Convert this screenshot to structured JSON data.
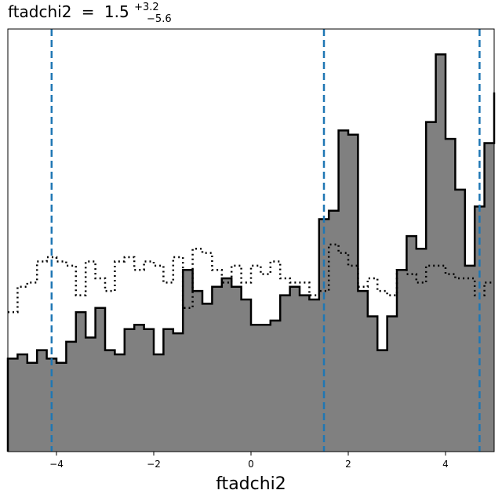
{
  "chart_data": {
    "type": "histogram",
    "title": {
      "param": "ftadchi2",
      "equals": "=",
      "median": "1.5",
      "upper_err": "+3.2",
      "lower_err": "−5.6"
    },
    "xlabel": "ftadchi2",
    "ylabel": "",
    "xlim": [
      -5,
      5
    ],
    "ylim": [
      0,
      1.0
    ],
    "x_ticks": [
      -4,
      -2,
      0,
      2,
      4
    ],
    "x_tick_labels": [
      "−4",
      "−2",
      "0",
      "2",
      "4"
    ],
    "y_ticks": [],
    "grid": false,
    "legend": "none",
    "bin_edges": [
      -5.0,
      -4.8,
      -4.6,
      -4.4,
      -4.2,
      -4.0,
      -3.8,
      -3.6,
      -3.4,
      -3.2,
      -3.0,
      -2.8,
      -2.6,
      -2.4,
      -2.2,
      -2.0,
      -1.8,
      -1.6,
      -1.4,
      -1.2,
      -1.0,
      -0.8,
      -0.6,
      -0.4,
      -0.2,
      0.0,
      0.2,
      0.4,
      0.6,
      0.8,
      1.0,
      1.2,
      1.4,
      1.6,
      1.8,
      2.0,
      2.2,
      2.4,
      2.6,
      2.8,
      3.0,
      3.2,
      3.4,
      3.6,
      3.8,
      4.0,
      4.2,
      4.4,
      4.6,
      4.8,
      5.0
    ],
    "series": [
      {
        "style": "filled-step",
        "fill_color": "#808080",
        "edge_color": "#000000",
        "values": [
          0.22,
          0.23,
          0.21,
          0.24,
          0.22,
          0.21,
          0.26,
          0.33,
          0.27,
          0.34,
          0.24,
          0.23,
          0.29,
          0.3,
          0.29,
          0.23,
          0.29,
          0.28,
          0.43,
          0.38,
          0.35,
          0.39,
          0.41,
          0.39,
          0.36,
          0.3,
          0.3,
          0.31,
          0.37,
          0.39,
          0.37,
          0.36,
          0.55,
          0.57,
          0.76,
          0.75,
          0.38,
          0.32,
          0.24,
          0.32,
          0.43,
          0.51,
          0.48,
          0.78,
          0.94,
          0.74,
          0.62,
          0.44,
          0.58,
          0.73,
          0.85
        ]
      },
      {
        "style": "dotted-step",
        "edge_color": "#000000",
        "values": [
          0.33,
          0.39,
          0.4,
          0.45,
          0.46,
          0.45,
          0.44,
          0.37,
          0.45,
          0.41,
          0.38,
          0.45,
          0.46,
          0.43,
          0.45,
          0.44,
          0.4,
          0.46,
          0.34,
          0.48,
          0.47,
          0.43,
          0.4,
          0.44,
          0.4,
          0.44,
          0.42,
          0.45,
          0.41,
          0.4,
          0.4,
          0.37,
          0.38,
          0.49,
          0.47,
          0.44,
          0.39,
          0.41,
          0.38,
          0.37,
          0.43,
          0.42,
          0.4,
          0.44,
          0.44,
          0.42,
          0.41,
          0.41,
          0.37,
          0.4,
          0.4
        ]
      }
    ],
    "vlines": {
      "color": "#1f77b4",
      "style": "dashed",
      "x": [
        -4.1,
        1.5,
        4.7
      ]
    }
  }
}
